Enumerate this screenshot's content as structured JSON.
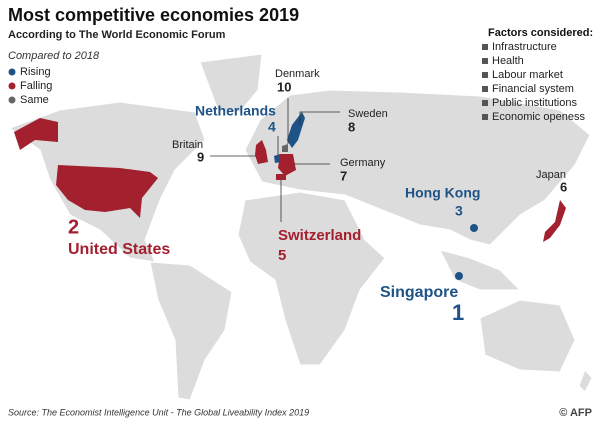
{
  "header": {
    "title": "Most competitive economies 2019",
    "subtitle": "According to The World Economic Forum"
  },
  "legend": {
    "title": "Compared to 2018",
    "items": [
      {
        "name": "Rising",
        "color": "#1d5386"
      },
      {
        "name": "Falling",
        "color": "#a3202f"
      },
      {
        "name": "Same",
        "color": "#666666"
      }
    ]
  },
  "factors": {
    "title": "Factors considered:",
    "items": [
      "Infrastructure",
      "Health",
      "Labour market",
      "Financial system",
      "Public institutions",
      "Economic openess"
    ]
  },
  "countries": [
    {
      "name": "Singapore",
      "rank": 1,
      "color": "#1d5386"
    },
    {
      "name": "United States",
      "rank": 2,
      "color": "#a3202f"
    },
    {
      "name": "Hong Kong",
      "rank": 3,
      "color": "#1d5386"
    },
    {
      "name": "Netherlands",
      "rank": 4,
      "color": "#1d5386"
    },
    {
      "name": "Switzerland",
      "rank": 5,
      "color": "#a3202f"
    },
    {
      "name": "Japan",
      "rank": 6,
      "color": "#a3202f"
    },
    {
      "name": "Germany",
      "rank": 7,
      "color": "#a3202f"
    },
    {
      "name": "Sweden",
      "rank": 8,
      "color": "#1d5386"
    },
    {
      "name": "Britain",
      "rank": 9,
      "color": "#a3202f"
    },
    {
      "name": "Denmark",
      "rank": 10,
      "color": "#666666"
    }
  ],
  "source": "Source:  The Economist Intelligence Unit - The Global Liveability Index 2019",
  "credit": "© AFP"
}
